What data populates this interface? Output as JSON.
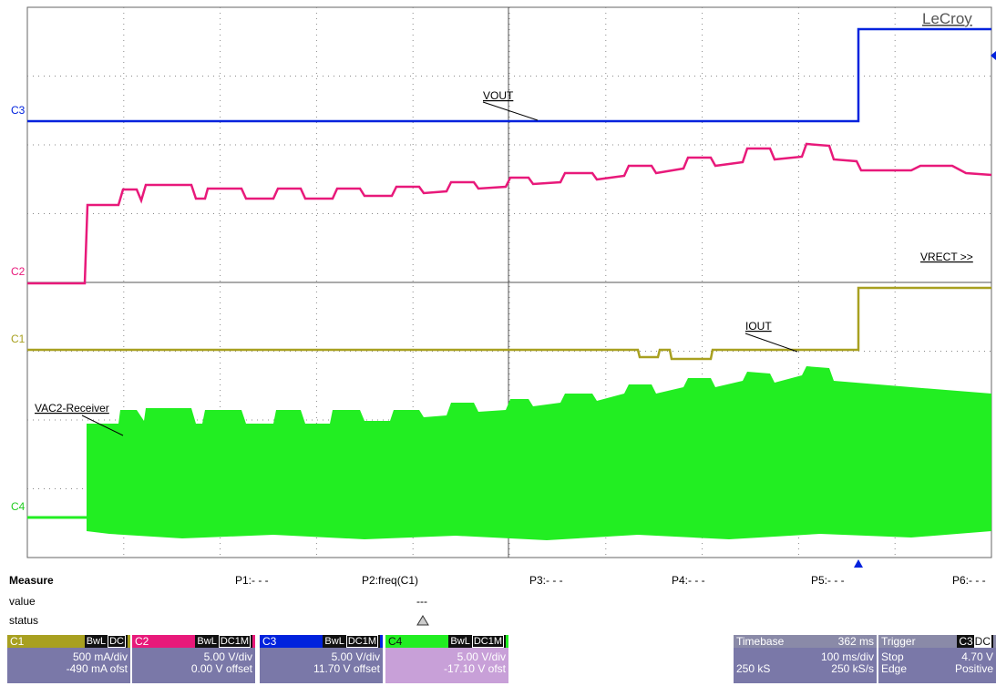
{
  "screen": {
    "brand": "LeCroy",
    "traces": {
      "c3": "C3",
      "c2": "C2",
      "c1": "C1",
      "c4": "C4"
    },
    "annotations": {
      "vout": "VOUT",
      "vrect": "VRECT >>",
      "iout": "IOUT",
      "vac2": "VAC2-Receiver"
    },
    "measure": {
      "title": "Measure",
      "params": [
        "P1:- - -",
        "P2:freq(C1)",
        "P3:- - -",
        "P4:- - -",
        "P5:- - -",
        "P6:- - -"
      ],
      "value_label": "value",
      "value": "---",
      "status_label": "status"
    },
    "channels": [
      {
        "name": "C1",
        "bw": "BwL",
        "coupling": "DC",
        "scale": "500 mA/div",
        "offset": "-490 mA ofst"
      },
      {
        "name": "C2",
        "bw": "BwL",
        "coupling": "DC1M",
        "scale": "5.00 V/div",
        "offset": "0.00 V offset"
      },
      {
        "name": "C3",
        "bw": "BwL",
        "coupling": "DC1M",
        "scale": "5.00 V/div",
        "offset": "11.70 V offset"
      },
      {
        "name": "C4",
        "bw": "BwL",
        "coupling": "DC1M",
        "scale": "5.00 V/div",
        "offset": "-17.10 V ofst"
      }
    ],
    "timebase": {
      "label": "Timebase",
      "delay": "362 ms",
      "scale": "100 ms/div",
      "samples": "250 kS",
      "rate": "250 kS/s"
    },
    "trigger": {
      "label": "Trigger",
      "source": "C3",
      "coupling": "DC",
      "mode": "Stop",
      "level": "4.70 V",
      "type": "Edge",
      "slope": "Positive"
    }
  }
}
